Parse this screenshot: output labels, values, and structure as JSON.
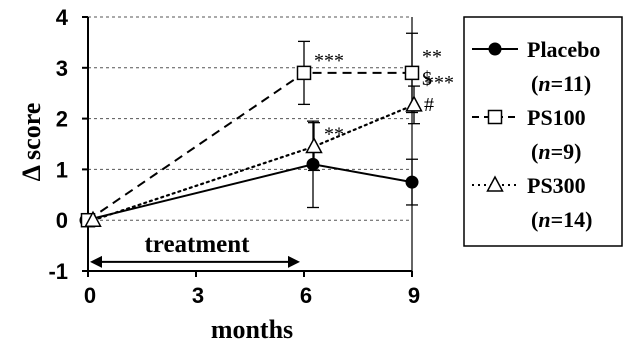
{
  "chart_data": {
    "type": "line",
    "xlabel": "months",
    "ylabel": "Δ score",
    "x_ticks": [
      "0",
      "3",
      "6",
      "9"
    ],
    "y_ticks": [
      "4",
      "3",
      "2",
      "1",
      "0",
      "-1"
    ],
    "xlim": [
      0,
      9
    ],
    "ylim": [
      -1,
      4
    ],
    "grid": "horizontal dashed",
    "legend_position": "right",
    "series": [
      {
        "name": "Placebo",
        "n_label": "n=11",
        "marker": "filled-circle",
        "line_style": "solid",
        "x": [
          0,
          6,
          9
        ],
        "values": [
          0,
          1.1,
          0.75
        ],
        "error": [
          null,
          0.85,
          0.45
        ],
        "significance": [
          null,
          null,
          null
        ]
      },
      {
        "name": "PS100",
        "n_label": "n=9",
        "marker": "open-square",
        "line_style": "dashed",
        "x": [
          0,
          6,
          9
        ],
        "values": [
          0,
          2.9,
          2.9
        ],
        "error": [
          null,
          0.62,
          0.78
        ],
        "significance": [
          null,
          "***",
          "**\n$"
        ]
      },
      {
        "name": "PS300",
        "n_label": "n=14",
        "marker": "open-triangle",
        "line_style": "dotted",
        "x": [
          0,
          6,
          9
        ],
        "values": [
          0,
          1.45,
          2.27
        ],
        "error": [
          null,
          0.47,
          0.37
        ],
        "significance": [
          null,
          "**",
          "***\n#"
        ]
      }
    ],
    "annotation": {
      "text": "treatment",
      "from_x": 0,
      "to_x": 6,
      "y": -0.82
    }
  }
}
